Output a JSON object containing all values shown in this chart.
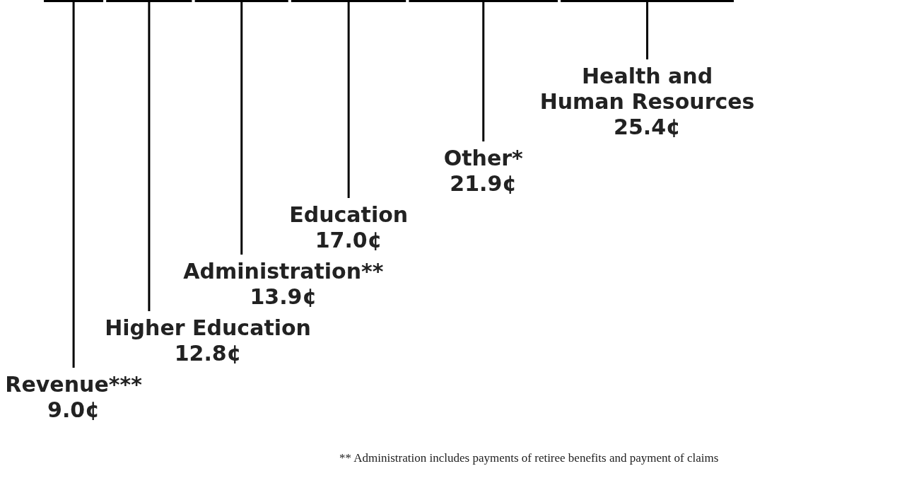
{
  "chart_data": {
    "type": "other",
    "categories": [
      null
    ],
    "series": [
      {
        "name": "Revenue***",
        "color": "#000000",
        "values": [
          9.0
        ],
        "value_labels": [
          "9.0¢"
        ]
      },
      {
        "name": "Higher Education",
        "color": "#000000",
        "values": [
          12.8
        ],
        "value_labels": [
          "12.8¢"
        ]
      },
      {
        "name": "Administration**",
        "color": "#000000",
        "values": [
          13.9
        ],
        "value_labels": [
          "13.9¢"
        ]
      },
      {
        "name": "Education",
        "color": "#000000",
        "values": [
          17.0
        ],
        "value_labels": [
          "17.0¢"
        ]
      },
      {
        "name": "Other*",
        "color": "#000000",
        "values": [
          21.9
        ],
        "value_labels": [
          "21.9¢"
        ]
      },
      {
        "name": "Health and Human Resources",
        "color": "#000000",
        "values": [
          25.4
        ],
        "value_labels": [
          "25.4¢"
        ]
      }
    ],
    "annotations": [
      "** Administration includes payments of retiree benefits and payment of claims"
    ]
  }
}
